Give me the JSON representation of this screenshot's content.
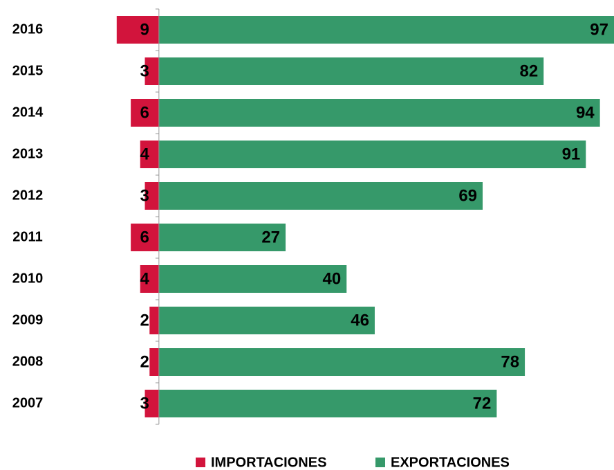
{
  "chart_data": {
    "type": "bar",
    "orientation": "horizontal",
    "categories": [
      "2016",
      "2015",
      "2014",
      "2013",
      "2012",
      "2011",
      "2010",
      "2009",
      "2008",
      "2007"
    ],
    "series": [
      {
        "name": "IMPORTACIONES",
        "color": "#d2143c",
        "values": [
          9,
          3,
          6,
          4,
          3,
          6,
          4,
          2,
          2,
          3
        ]
      },
      {
        "name": "EXPORTACIONES",
        "color": "#36996a",
        "values": [
          97,
          82,
          94,
          91,
          69,
          27,
          40,
          46,
          78,
          72
        ]
      }
    ],
    "xlim": [
      -10,
      97
    ],
    "legend": "bottom"
  }
}
